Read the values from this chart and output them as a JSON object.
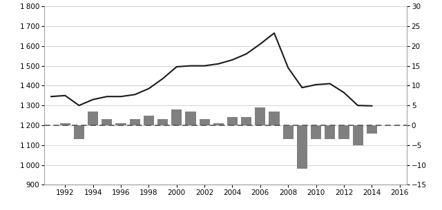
{
  "years": [
    1991,
    1992,
    1993,
    1994,
    1995,
    1996,
    1997,
    1998,
    1999,
    2000,
    2001,
    2002,
    2003,
    2004,
    2005,
    2006,
    2007,
    2008,
    2009,
    2010,
    2011,
    2012,
    2013,
    2014
  ],
  "line_values": [
    1345,
    1350,
    1300,
    1330,
    1345,
    1345,
    1355,
    1385,
    1435,
    1495,
    1500,
    1500,
    1510,
    1530,
    1560,
    1610,
    1665,
    1490,
    1390,
    1405,
    1410,
    1365,
    1300,
    1298
  ],
  "bar_years": [
    1992,
    1993,
    1994,
    1995,
    1996,
    1997,
    1998,
    1999,
    2000,
    2001,
    2002,
    2003,
    2004,
    2005,
    2006,
    2007,
    2008,
    2009,
    2010,
    2011,
    2012,
    2013,
    2014
  ],
  "bar_values": [
    0.5,
    -3.5,
    3.5,
    1.5,
    0.5,
    1.5,
    2.5,
    1.5,
    4.0,
    3.5,
    1.5,
    0.5,
    2.0,
    2.0,
    4.5,
    3.5,
    -3.5,
    -11.0,
    -3.5,
    -3.5,
    -3.5,
    -5.0,
    -2.0
  ],
  "left_ylim": [
    900,
    1800
  ],
  "left_yticks": [
    900,
    1000,
    1100,
    1200,
    1300,
    1400,
    1500,
    1600,
    1700,
    1800
  ],
  "right_ylim": [
    -15,
    30
  ],
  "right_yticks": [
    -15,
    -10,
    -5,
    0,
    5,
    10,
    15,
    20,
    25,
    30
  ],
  "xlim": [
    1990.5,
    2016.5
  ],
  "xticks": [
    1992,
    1994,
    1996,
    1998,
    2000,
    2002,
    2004,
    2006,
    2008,
    2010,
    2012,
    2014,
    2016
  ],
  "line_color": "#1a1a1a",
  "bar_color": "#808080",
  "dashed_color": "#555555",
  "background_color": "#ffffff",
  "grid_color": "#cccccc"
}
